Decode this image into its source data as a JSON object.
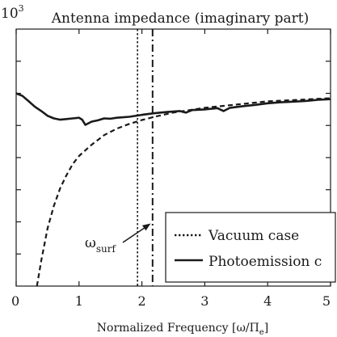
{
  "chart_data": {
    "type": "line",
    "title": "Antenna impedance (imaginary part)",
    "scale_label": "10",
    "scale_exponent": "3",
    "xlabel": "Normalized Frequency [ω/Π",
    "xlabel_sub": "e",
    "xlabel_close": "]",
    "ylabel": "",
    "xlim": [
      0,
      5
    ],
    "ylim": [
      -7,
      1
    ],
    "xticks": [
      0,
      1,
      2,
      3,
      4,
      5
    ],
    "xtick_labels": [
      "0",
      "1",
      "2",
      "3",
      "4",
      "5"
    ],
    "yticks": [
      -6,
      -5,
      -4,
      -3,
      -2,
      -1,
      0
    ],
    "grid": false,
    "legend_position": "bottom-right",
    "series": [
      {
        "name": "Vacuum case",
        "style": "dotted",
        "color": "#1a1a1a",
        "x": [
          0.33,
          0.4,
          0.5,
          0.6,
          0.7,
          0.8,
          0.9,
          1.0,
          1.2,
          1.4,
          1.6,
          1.8,
          2.0,
          2.2,
          2.5,
          3.0,
          3.5,
          4.0,
          4.5,
          5.0
        ],
        "y": [
          -7.0,
          -6.2,
          -5.2,
          -4.5,
          -3.95,
          -3.55,
          -3.2,
          -2.95,
          -2.6,
          -2.3,
          -2.1,
          -1.95,
          -1.83,
          -1.73,
          -1.6,
          -1.45,
          -1.35,
          -1.25,
          -1.2,
          -1.15
        ]
      },
      {
        "name": "Photoemission c",
        "style": "solid",
        "color": "#1a1a1a",
        "x": [
          0.0,
          0.1,
          0.2,
          0.3,
          0.4,
          0.5,
          0.6,
          0.7,
          0.8,
          0.9,
          1.0,
          1.05,
          1.1,
          1.2,
          1.3,
          1.4,
          1.5,
          1.6,
          1.8,
          2.0,
          2.2,
          2.4,
          2.6,
          2.7,
          2.8,
          3.0,
          3.2,
          3.3,
          3.4,
          3.6,
          3.8,
          4.0,
          4.2,
          4.4,
          4.6,
          4.8,
          5.0
        ],
        "y": [
          -1.0,
          -1.08,
          -1.25,
          -1.42,
          -1.55,
          -1.7,
          -1.78,
          -1.82,
          -1.8,
          -1.78,
          -1.76,
          -1.82,
          -1.98,
          -1.88,
          -1.84,
          -1.78,
          -1.79,
          -1.76,
          -1.73,
          -1.67,
          -1.62,
          -1.58,
          -1.55,
          -1.6,
          -1.52,
          -1.5,
          -1.46,
          -1.55,
          -1.45,
          -1.4,
          -1.36,
          -1.31,
          -1.28,
          -1.26,
          -1.24,
          -1.2,
          -1.18
        ]
      }
    ],
    "vlines": [
      {
        "x": 1.93,
        "style": "dotted"
      },
      {
        "x": 2.17,
        "style": "dashdot"
      }
    ],
    "annotation": {
      "text": "ω",
      "subscript": "surf",
      "arrow_to_x": 2.14,
      "arrow_to_y": -5.05
    }
  }
}
